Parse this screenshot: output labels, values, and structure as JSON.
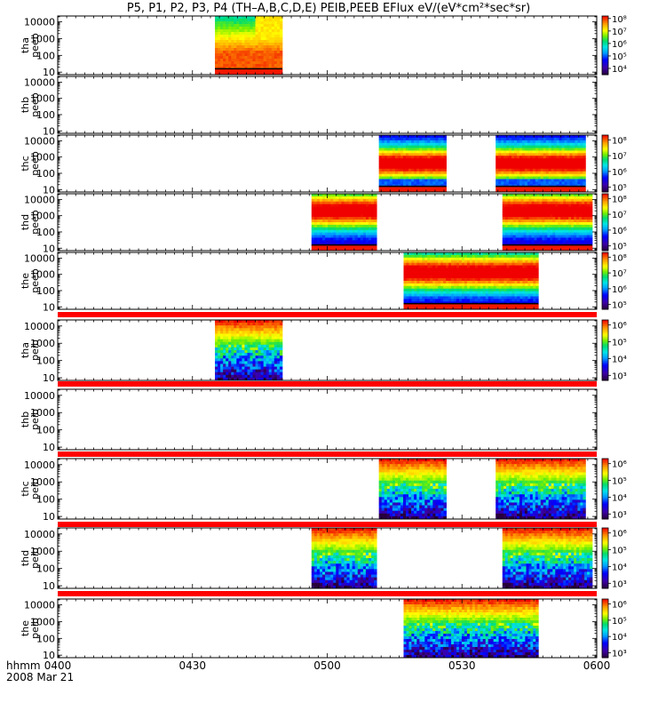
{
  "title": "P5, P1, P2, P3, P4 (TH–A,B,C,D,E) PEIB,PEEB EFlux eV/(eV*cm²*sec*sr)",
  "footer": {
    "axis_label": "hhmm",
    "date": "2008 Mar 21"
  },
  "colors": {
    "flag_bar": "#ff0000",
    "fill_line": "#000000"
  },
  "chart_data": {
    "type": "heatmap",
    "x_ticks": [
      "0400",
      "0430",
      "0500",
      "0530",
      "0600"
    ],
    "x_range_minutes": [
      0,
      120
    ],
    "y_scale": "log",
    "y_ticks": [
      "10",
      "100",
      "1000",
      "10000"
    ],
    "panels": [
      {
        "label": [
          "tha",
          "peeb"
        ],
        "cbar": [
          "10⁸",
          "10⁷",
          "10⁶",
          "10⁵",
          "10⁴"
        ],
        "cmin": 3.5,
        "cmax": 8.2,
        "kind": "electron",
        "spans": [
          [
            35,
            50,
            "tha_peeb"
          ]
        ]
      },
      {
        "label": [
          "thb",
          "peeb"
        ],
        "cbar": null,
        "spans": []
      },
      {
        "label": [
          "thc",
          "peeb"
        ],
        "cbar": [
          "10⁸",
          "10⁷",
          "10⁶",
          "10⁵"
        ],
        "cmin": 4.7,
        "cmax": 8.3,
        "kind": "electron",
        "spans": [
          [
            71.5,
            86.5,
            "thc_peeb_a"
          ],
          [
            97.5,
            117.5,
            "thc_peeb_b"
          ]
        ]
      },
      {
        "label": [
          "thd",
          "peeb"
        ],
        "cbar": [
          "10⁸",
          "10⁷",
          "10⁶",
          "10⁵"
        ],
        "cmin": 4.7,
        "cmax": 8.3,
        "kind": "electron",
        "spans": [
          [
            56.5,
            71,
            "thd_peeb_a"
          ],
          [
            99,
            119,
            "thd_peeb_b"
          ]
        ]
      },
      {
        "label": [
          "the",
          "peeb"
        ],
        "cbar": [
          "10⁸",
          "10⁷",
          "10⁶",
          "10⁵"
        ],
        "cmin": 4.7,
        "cmax": 8.3,
        "kind": "electron",
        "spans": [
          [
            77,
            107,
            "the_peeb"
          ]
        ]
      },
      {
        "label": [
          "tha",
          "peib"
        ],
        "cbar": [
          "10⁶",
          "10⁵",
          "10⁴",
          "10³"
        ],
        "cmin": 2.7,
        "cmax": 6.3,
        "kind": "ion",
        "flag": true,
        "spans": [
          [
            35,
            50,
            "tha_peib"
          ]
        ]
      },
      {
        "label": [
          "thb",
          "peib"
        ],
        "cbar": null,
        "flag": true,
        "spans": []
      },
      {
        "label": [
          "thc",
          "peib"
        ],
        "cbar": [
          "10⁶",
          "10⁵",
          "10⁴",
          "10³"
        ],
        "cmin": 2.7,
        "cmax": 6.3,
        "kind": "ion",
        "flag": true,
        "spans": [
          [
            71.5,
            86.5,
            "thc_peib_a"
          ],
          [
            97.5,
            117.5,
            "thc_peib_b"
          ]
        ]
      },
      {
        "label": [
          "thd",
          "peib"
        ],
        "cbar": [
          "10⁶",
          "10⁵",
          "10⁴",
          "10³"
        ],
        "cmin": 2.7,
        "cmax": 6.3,
        "kind": "ion",
        "flag": true,
        "spans": [
          [
            56.5,
            71,
            "thd_peib_a"
          ],
          [
            99,
            119,
            "thd_peib_b"
          ]
        ]
      },
      {
        "label": [
          "the",
          "peib"
        ],
        "cbar": [
          "10⁶",
          "10⁵",
          "10⁴",
          "10³"
        ],
        "cmin": 2.7,
        "cmax": 6.3,
        "kind": "ion",
        "flag": true,
        "spans": [
          [
            77,
            107,
            "the_peib"
          ]
        ]
      }
    ]
  }
}
